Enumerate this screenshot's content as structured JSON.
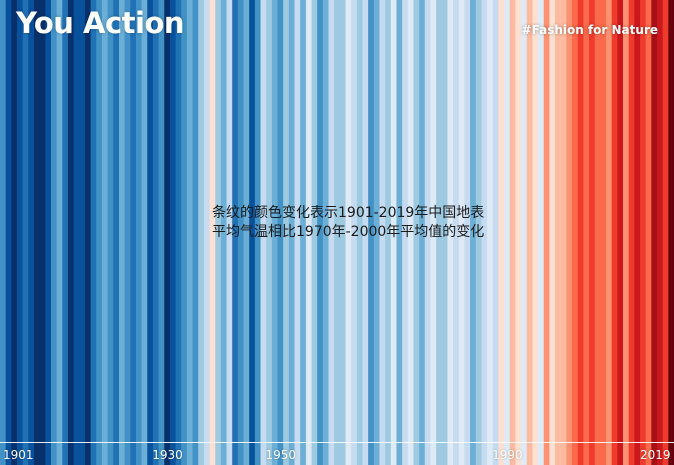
{
  "header": {
    "title": "You Action",
    "tag": "#Fashion for Nature"
  },
  "caption": {
    "line1": "条纹的颜色变化表示1901-2019年中国地表",
    "line2": "平均气温相比1970年-2000年平均值的变化"
  },
  "colors": {
    "scale": [
      "#08306b",
      "#08519c",
      "#2171b5",
      "#4292c6",
      "#6baed6",
      "#9ecae1",
      "#c6dbef",
      "#deebf7",
      "#fee0d2",
      "#fcbba1",
      "#fc9272",
      "#fb6a4a",
      "#ef3b2c",
      "#cb181d",
      "#a50f15",
      "#67000d"
    ]
  },
  "chart_data": {
    "type": "heatmap",
    "title": "",
    "x": [
      1901,
      1902,
      1903,
      1904,
      1905,
      1906,
      1907,
      1908,
      1909,
      1910,
      1911,
      1912,
      1913,
      1914,
      1915,
      1916,
      1917,
      1918,
      1919,
      1920,
      1921,
      1922,
      1923,
      1924,
      1925,
      1926,
      1927,
      1928,
      1929,
      1930,
      1931,
      1932,
      1933,
      1934,
      1935,
      1936,
      1937,
      1938,
      1939,
      1940,
      1941,
      1942,
      1943,
      1944,
      1945,
      1946,
      1947,
      1948,
      1949,
      1950,
      1951,
      1952,
      1953,
      1954,
      1955,
      1956,
      1957,
      1958,
      1959,
      1960,
      1961,
      1962,
      1963,
      1964,
      1965,
      1966,
      1967,
      1968,
      1969,
      1970,
      1971,
      1972,
      1973,
      1974,
      1975,
      1976,
      1977,
      1978,
      1979,
      1980,
      1981,
      1982,
      1983,
      1984,
      1985,
      1986,
      1987,
      1988,
      1989,
      1990,
      1991,
      1992,
      1993,
      1994,
      1995,
      1996,
      1997,
      1998,
      1999,
      2000,
      2001,
      2002,
      2003,
      2004,
      2005,
      2006,
      2007,
      2008,
      2009,
      2010,
      2011,
      2012,
      2013,
      2014,
      2015,
      2016,
      2017,
      2018,
      2019
    ],
    "color_index": [
      3,
      1,
      0,
      1,
      2,
      1,
      0,
      0,
      1,
      3,
      4,
      2,
      0,
      1,
      1,
      0,
      2,
      3,
      4,
      3,
      2,
      4,
      3,
      2,
      3,
      4,
      1,
      2,
      3,
      0,
      1,
      2,
      3,
      4,
      3,
      5,
      6,
      8,
      5,
      4,
      6,
      2,
      3,
      4,
      1,
      3,
      6,
      5,
      4,
      3,
      5,
      4,
      6,
      4,
      7,
      5,
      3,
      4,
      6,
      5,
      5,
      7,
      6,
      5,
      6,
      3,
      4,
      6,
      5,
      7,
      4,
      6,
      7,
      5,
      4,
      6,
      7,
      5,
      5,
      7,
      6,
      7,
      6,
      4,
      5,
      6,
      7,
      6,
      8,
      7,
      9,
      8,
      7,
      9,
      8,
      7,
      10,
      8,
      9,
      9,
      10,
      11,
      12,
      11,
      12,
      11,
      11,
      10,
      12,
      13,
      10,
      12,
      13,
      12,
      11,
      14,
      13,
      12,
      15
    ],
    "tick_labels": [
      "1901",
      "1930",
      "1950",
      "1990",
      "2019"
    ],
    "tick_years": [
      1901,
      1930,
      1950,
      1990,
      2019
    ]
  }
}
